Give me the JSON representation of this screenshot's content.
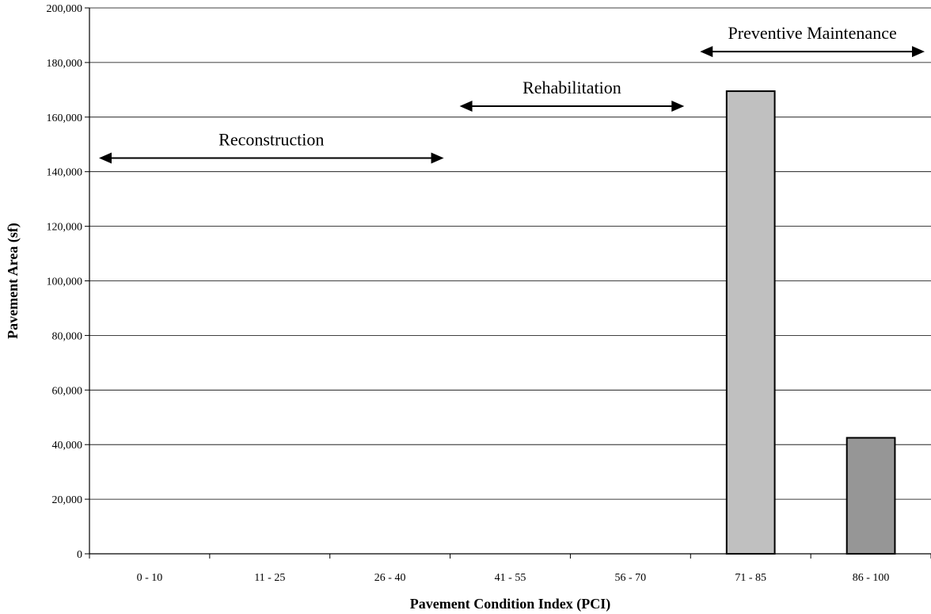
{
  "chart_data": {
    "type": "bar",
    "title": "",
    "xlabel": "Pavement Condition Index (PCI)",
    "ylabel": "Pavement Area (sf)",
    "categories": [
      "0 - 10",
      "11 - 25",
      "26 - 40",
      "41 - 55",
      "56 - 70",
      "71 - 85",
      "86 - 100"
    ],
    "values": [
      0,
      0,
      0,
      0,
      0,
      169500,
      42500
    ],
    "bar_colors": [
      "#c0c0c0",
      "#c0c0c0",
      "#c0c0c0",
      "#c0c0c0",
      "#c0c0c0",
      "#c0c0c0",
      "#969696"
    ],
    "ylim": [
      0,
      200000
    ],
    "yticks": [
      "0",
      "20,000",
      "40,000",
      "60,000",
      "80,000",
      "100,000",
      "120,000",
      "140,000",
      "160,000",
      "180,000",
      "200,000"
    ],
    "grid": true,
    "annotations": [
      {
        "label": "Reconstruction",
        "from_category": 0,
        "to_category": 2,
        "level": 145000
      },
      {
        "label": "Rehabilitation",
        "from_category": 3,
        "to_category": 4,
        "level": 164000
      },
      {
        "label": "Preventive Maintenance",
        "from_category": 5,
        "to_category": 6,
        "level": 184000
      }
    ]
  }
}
